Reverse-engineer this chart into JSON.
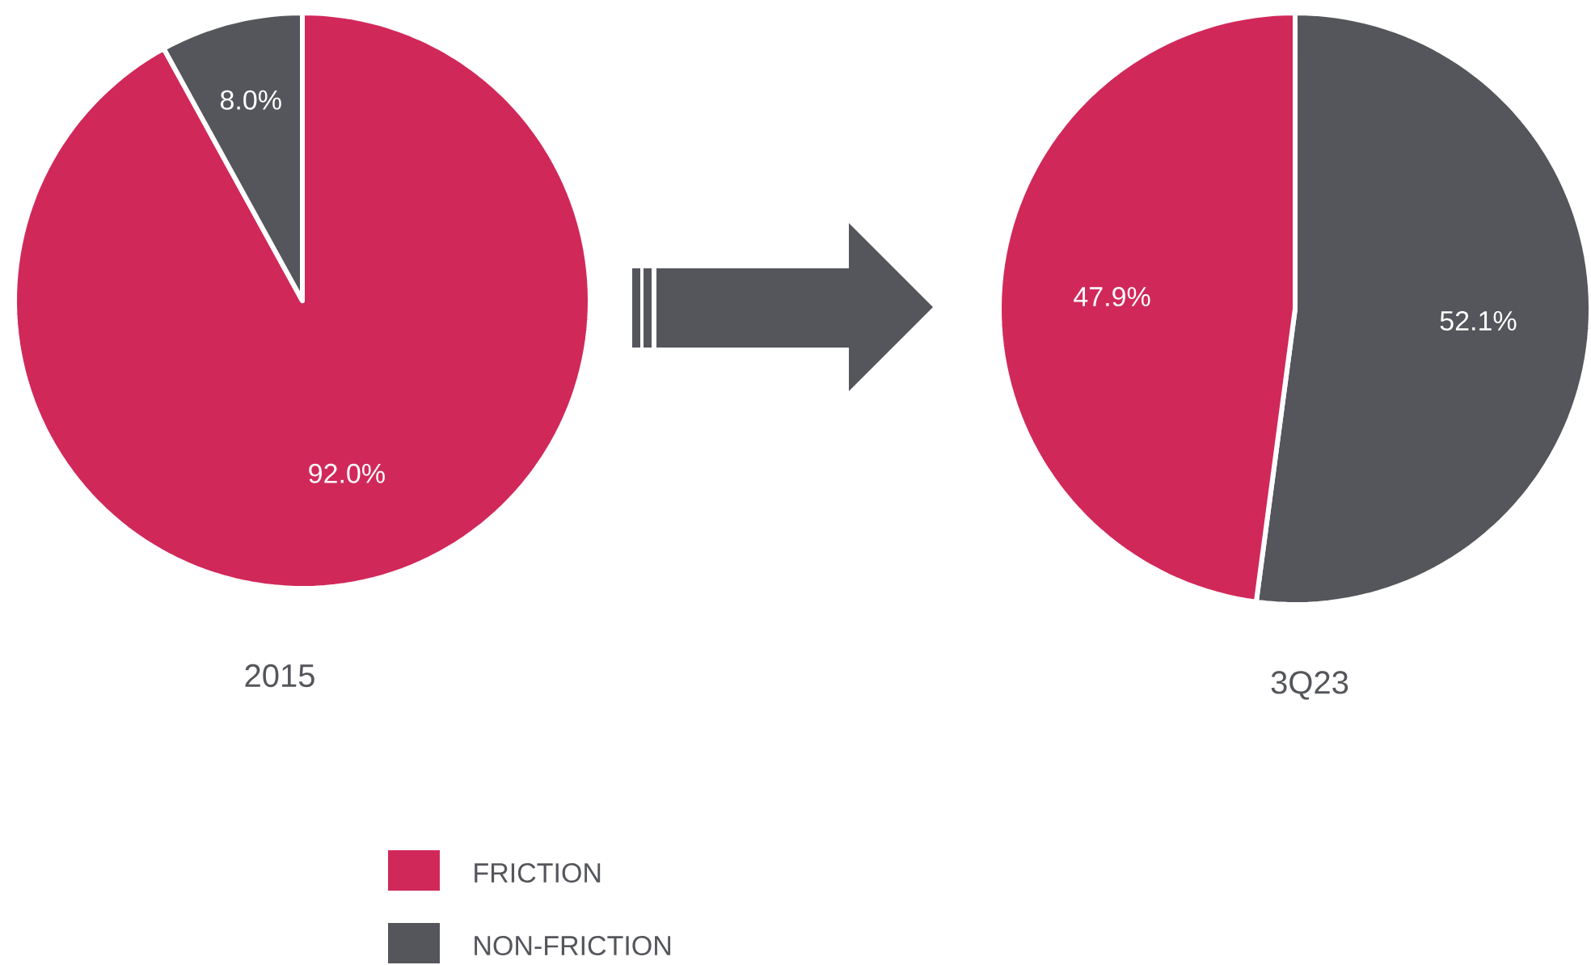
{
  "chart_data": [
    {
      "type": "pie",
      "title": "2015",
      "categories": [
        "FRICTION",
        "NON-FRICTION"
      ],
      "values": [
        92.0,
        8.0
      ],
      "colors": [
        "#d1285a",
        "#54565b"
      ],
      "value_labels": [
        "92.0%",
        "8.0%"
      ],
      "legend": "bottom"
    },
    {
      "type": "pie",
      "title": "3Q23",
      "categories": [
        null,
        null
      ],
      "values": [
        52.1,
        47.9
      ],
      "colors": [
        "#54565b",
        "#d1285a"
      ],
      "value_labels": [
        "52.1%",
        "47.9%"
      ]
    }
  ]
}
